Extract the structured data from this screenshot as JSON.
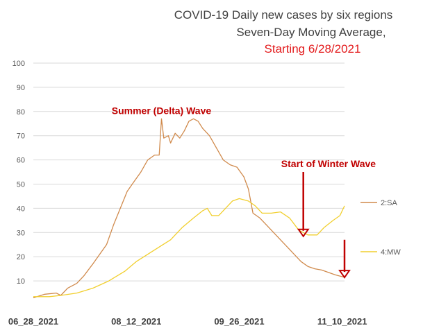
{
  "colors": {
    "sa": "#d08a4c",
    "mw": "#f1cf2e",
    "grid": "#d9d9d9",
    "annotation": "#c00000",
    "title_red": "#e31a1c"
  },
  "chart_data": {
    "type": "line",
    "title_lines": [
      "COVID-19 Daily new cases by six regions",
      "Seven-Day Moving Average,",
      "Starting 6/28/2021"
    ],
    "xlabel": "",
    "ylabel": "",
    "ylim": [
      0,
      100
    ],
    "yticks": [
      10,
      20,
      30,
      40,
      50,
      60,
      70,
      80,
      90,
      100
    ],
    "x_start_date": "2021-06-28",
    "x_tick_labels": [
      "06_28_2021",
      "08_12_2021",
      "09_26_2021",
      "11_10_2021"
    ],
    "x_tick_dates": [
      "2021-06-28",
      "2021-08-12",
      "2021-09-26",
      "2021-11-10"
    ],
    "grid": "horizontal",
    "legend": "right",
    "series": [
      {
        "name": "2:SA",
        "color_key": "sa",
        "points": [
          [
            "2021-06-28",
            3
          ],
          [
            "2021-07-03",
            4.5
          ],
          [
            "2021-07-08",
            5
          ],
          [
            "2021-07-10",
            4
          ],
          [
            "2021-07-13",
            7
          ],
          [
            "2021-07-17",
            9
          ],
          [
            "2021-07-20",
            12
          ],
          [
            "2021-07-24",
            17
          ],
          [
            "2021-07-27",
            21
          ],
          [
            "2021-07-30",
            25
          ],
          [
            "2021-08-02",
            33
          ],
          [
            "2021-08-05",
            40
          ],
          [
            "2021-08-08",
            47
          ],
          [
            "2021-08-11",
            51
          ],
          [
            "2021-08-14",
            55
          ],
          [
            "2021-08-17",
            60
          ],
          [
            "2021-08-20",
            62
          ],
          [
            "2021-08-22",
            62
          ],
          [
            "2021-08-23",
            77
          ],
          [
            "2021-08-24",
            69
          ],
          [
            "2021-08-26",
            70
          ],
          [
            "2021-08-27",
            67
          ],
          [
            "2021-08-29",
            71
          ],
          [
            "2021-08-31",
            69
          ],
          [
            "2021-09-02",
            72
          ],
          [
            "2021-09-04",
            76
          ],
          [
            "2021-09-06",
            77
          ],
          [
            "2021-09-08",
            76
          ],
          [
            "2021-09-10",
            73
          ],
          [
            "2021-09-13",
            70
          ],
          [
            "2021-09-16",
            65
          ],
          [
            "2021-09-19",
            60
          ],
          [
            "2021-09-22",
            58
          ],
          [
            "2021-09-25",
            57
          ],
          [
            "2021-09-28",
            53
          ],
          [
            "2021-09-30",
            48
          ],
          [
            "2021-10-02",
            38
          ],
          [
            "2021-10-05",
            36
          ],
          [
            "2021-10-08",
            33
          ],
          [
            "2021-10-11",
            30
          ],
          [
            "2021-10-14",
            27
          ],
          [
            "2021-10-17",
            24
          ],
          [
            "2021-10-20",
            21
          ],
          [
            "2021-10-23",
            18
          ],
          [
            "2021-10-26",
            16
          ],
          [
            "2021-10-29",
            15
          ],
          [
            "2021-11-01",
            14.5
          ],
          [
            "2021-11-04",
            13.5
          ],
          [
            "2021-11-07",
            12.5
          ],
          [
            "2021-11-09",
            12
          ],
          [
            "2021-11-11",
            11.5
          ]
        ]
      },
      {
        "name": "4:MW",
        "color_key": "mw",
        "points": [
          [
            "2021-06-28",
            3.5
          ],
          [
            "2021-07-05",
            3.5
          ],
          [
            "2021-07-10",
            4
          ],
          [
            "2021-07-17",
            5
          ],
          [
            "2021-07-24",
            7
          ],
          [
            "2021-07-31",
            10
          ],
          [
            "2021-08-07",
            14
          ],
          [
            "2021-08-12",
            18
          ],
          [
            "2021-08-17",
            21
          ],
          [
            "2021-08-22",
            24
          ],
          [
            "2021-08-27",
            27
          ],
          [
            "2021-09-01",
            32
          ],
          [
            "2021-09-06",
            36
          ],
          [
            "2021-09-10",
            39
          ],
          [
            "2021-09-12",
            40
          ],
          [
            "2021-09-14",
            37
          ],
          [
            "2021-09-17",
            37
          ],
          [
            "2021-09-20",
            40
          ],
          [
            "2021-09-23",
            43
          ],
          [
            "2021-09-26",
            44
          ],
          [
            "2021-09-30",
            43
          ],
          [
            "2021-10-03",
            41
          ],
          [
            "2021-10-06",
            38
          ],
          [
            "2021-10-10",
            38
          ],
          [
            "2021-10-14",
            38.5
          ],
          [
            "2021-10-18",
            36
          ],
          [
            "2021-10-22",
            31
          ],
          [
            "2021-10-26",
            29
          ],
          [
            "2021-10-30",
            29
          ],
          [
            "2021-11-02",
            32
          ],
          [
            "2021-11-06",
            35
          ],
          [
            "2021-11-09",
            37
          ],
          [
            "2021-11-11",
            41
          ]
        ]
      }
    ],
    "annotations": [
      {
        "text": "Summer (Delta) Wave",
        "x": "2021-08-23",
        "y": 79
      },
      {
        "text": "Start of Winter Wave",
        "x": "2021-11-04",
        "y": 57
      }
    ],
    "arrows": [
      {
        "x": "2021-10-24",
        "from_y": 55,
        "to_y": 29
      },
      {
        "x": "2021-11-11",
        "from_y": 27,
        "to_y": 12
      }
    ]
  }
}
